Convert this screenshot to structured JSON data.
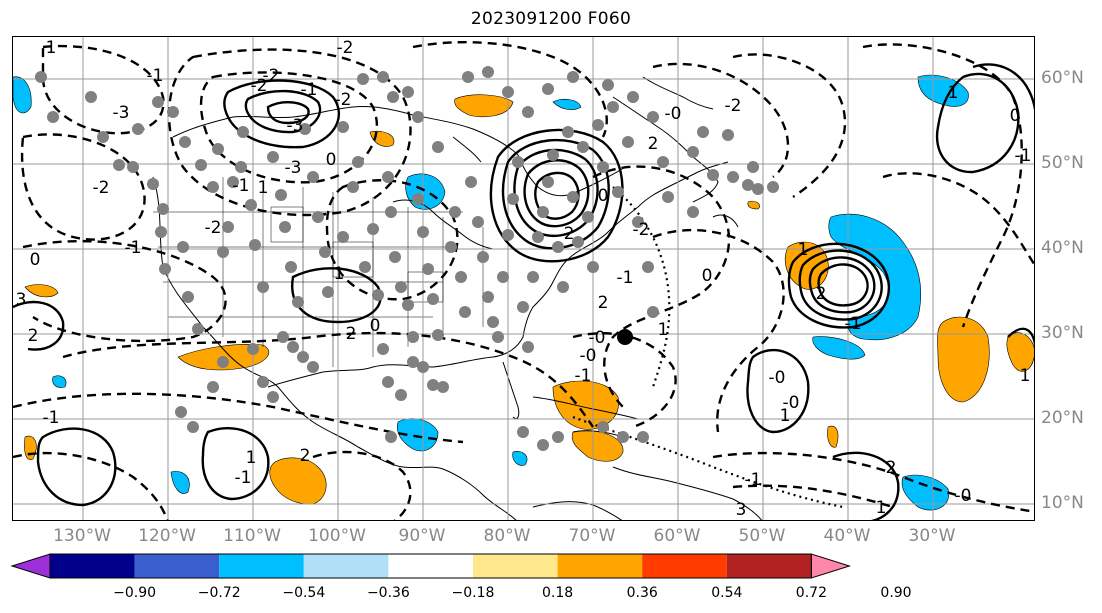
{
  "title": "2023091200 F060",
  "longitude_labels": [
    "130°W",
    "120°W",
    "110°W",
    "100°W",
    "90°W",
    "80°W",
    "70°W",
    "60°W",
    "50°W",
    "40°W",
    "30°W"
  ],
  "latitude_labels": [
    "60°N",
    "50°N",
    "40°N",
    "30°N",
    "20°N",
    "10°N"
  ],
  "contour_labels": [
    "1",
    "-2",
    "-1",
    "-3",
    "-3",
    "-2",
    "-1",
    "0",
    "-2",
    "-3",
    "-2",
    "0",
    "-2",
    "-1",
    "1",
    "-1",
    "2",
    "0",
    "-0",
    "-2",
    "0",
    "-2",
    "2",
    "-1",
    "1",
    "-0",
    "0",
    "2",
    "1",
    "-2",
    "2",
    "-0",
    "-1",
    "1",
    "-1",
    "2",
    "-0",
    "1",
    "-0",
    "-1",
    "3",
    "2",
    "1",
    "0",
    "1",
    "-1",
    "1",
    "-0",
    "2",
    "3",
    "1",
    "-1",
    "2",
    "-1"
  ],
  "marker_legend": "black dot",
  "colorbar": {
    "ticks": [
      "−0.90",
      "−0.72",
      "−0.54",
      "−0.36",
      "−0.18",
      "0.18",
      "0.36",
      "0.54",
      "0.72",
      "0.90"
    ],
    "colors": [
      "#9b30d9",
      "#00008b",
      "#3a5fcd",
      "#00bfff",
      "#b0e0f8",
      "#ffffff",
      "#ffe88c",
      "#ffa500",
      "#ff3b00",
      "#b22222",
      "#ff88aa"
    ]
  },
  "colors": {
    "land": "#000000",
    "grid": "#999999",
    "station": "#808080",
    "negative_shading": "#00bfff",
    "positive_shading": "#ffa500"
  }
}
